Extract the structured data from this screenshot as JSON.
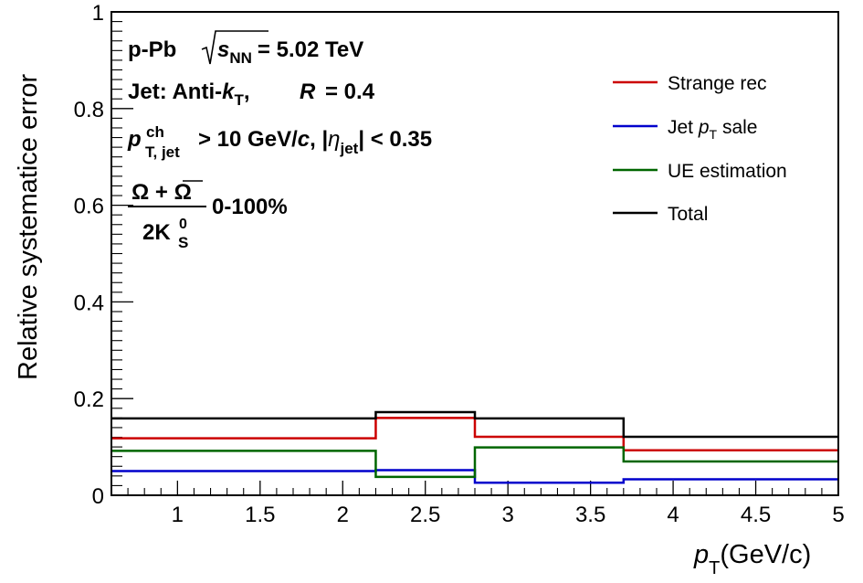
{
  "chart_data": {
    "type": "line",
    "step": true,
    "xlabel": "p_T(GeV/c)",
    "xlabel_main": "p",
    "xlabel_sub": "T",
    "xlabel_unit": "(GeV/c)",
    "ylabel": "Relative systematice error",
    "xlim": [
      0.6,
      5.0
    ],
    "ylim": [
      0,
      1
    ],
    "x_ticks": [
      1,
      1.5,
      2,
      2.5,
      3,
      3.5,
      4,
      4.5,
      5
    ],
    "x_tick_labels": [
      "1",
      "1.5",
      "2",
      "2.5",
      "3",
      "3.5",
      "4",
      "4.5",
      "5"
    ],
    "y_ticks": [
      0,
      0.2,
      0.4,
      0.6,
      0.8,
      1
    ],
    "y_tick_labels": [
      "0",
      "0.2",
      "0.4",
      "0.6",
      "0.8",
      "1"
    ],
    "bin_edges": [
      0.6,
      2.2,
      2.8,
      3.7,
      5.0
    ],
    "series": [
      {
        "name": "Strange rec",
        "color": "#cc0000",
        "values": [
          0.118,
          0.16,
          0.121,
          0.093
        ]
      },
      {
        "name": "Jet p_T sale",
        "color": "#0000cc",
        "values": [
          0.05,
          0.052,
          0.026,
          0.033
        ]
      },
      {
        "name": "UE estimation",
        "color": "#006600",
        "values": [
          0.092,
          0.038,
          0.099,
          0.07
        ]
      },
      {
        "name": "Total",
        "color": "#000000",
        "values": [
          0.159,
          0.172,
          0.159,
          0.121
        ]
      }
    ],
    "legend": {
      "placement": "top-right",
      "entries": [
        {
          "text": "Strange rec"
        },
        {
          "main": "Jet ",
          "italic": "p",
          "sub": "T",
          "tail": " sale"
        },
        {
          "text": "UE estimation"
        },
        {
          "text": "Total"
        }
      ]
    },
    "annotations": {
      "line1_a": "p-Pb",
      "line1_s": "s",
      "line1_nn": "NN",
      "line1_b": "= 5.02 TeV",
      "line2_a": "Jet: Anti-",
      "line2_k": "k",
      "line2_t": "T",
      "line2_b": ",",
      "line2_r": "R",
      "line2_c": "= 0.4",
      "line3_p": "p",
      "line3_ch": "ch",
      "line3_tjet": "T, jet",
      "line3_b": "> 10 GeV/",
      "line3_c": "c",
      "line3_d": ", |",
      "line3_eta": "η",
      "line3_jet": "jet",
      "line3_e": "| < 0.35",
      "ratio_num": "Ω + Ω",
      "ratio_den": "2K",
      "ratio_den_sup": "0",
      "ratio_den_sub": "S",
      "ratio_range": "0-100%"
    }
  }
}
